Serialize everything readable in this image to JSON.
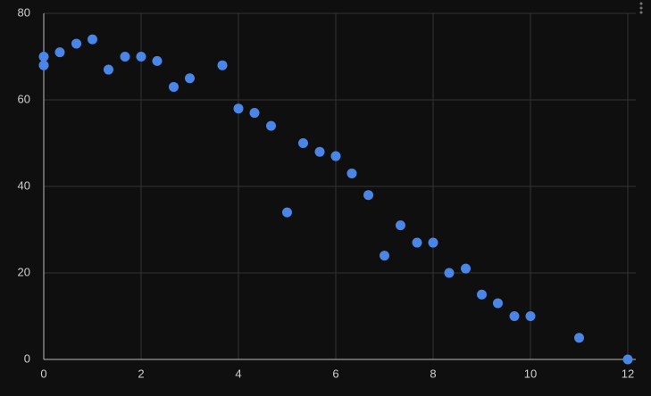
{
  "chart_data": {
    "type": "scatter",
    "color": "#4a86e8",
    "x": [
      0,
      0,
      0.33,
      0.67,
      1,
      1.33,
      1.67,
      2,
      2.33,
      2.67,
      3,
      3.67,
      4,
      4.33,
      4.67,
      5,
      5.33,
      5.67,
      6,
      6.33,
      6.67,
      7,
      7.33,
      7.67,
      8,
      8.33,
      8.67,
      9,
      9.33,
      9.67,
      10,
      11,
      12
    ],
    "values": [
      70,
      68,
      71,
      73,
      74,
      67,
      70,
      70,
      69,
      63,
      65,
      68,
      58,
      57,
      54,
      34,
      50,
      48,
      47,
      43,
      38,
      24,
      31,
      27,
      27,
      20,
      21,
      15,
      13,
      10,
      10,
      5,
      0
    ],
    "xlim": [
      0,
      12
    ],
    "xticks": [
      0,
      2,
      4,
      6,
      8,
      10,
      12
    ],
    "ylim": [
      0,
      80
    ],
    "yticks": [
      0,
      20,
      40,
      60,
      80
    ],
    "grid": true
  }
}
